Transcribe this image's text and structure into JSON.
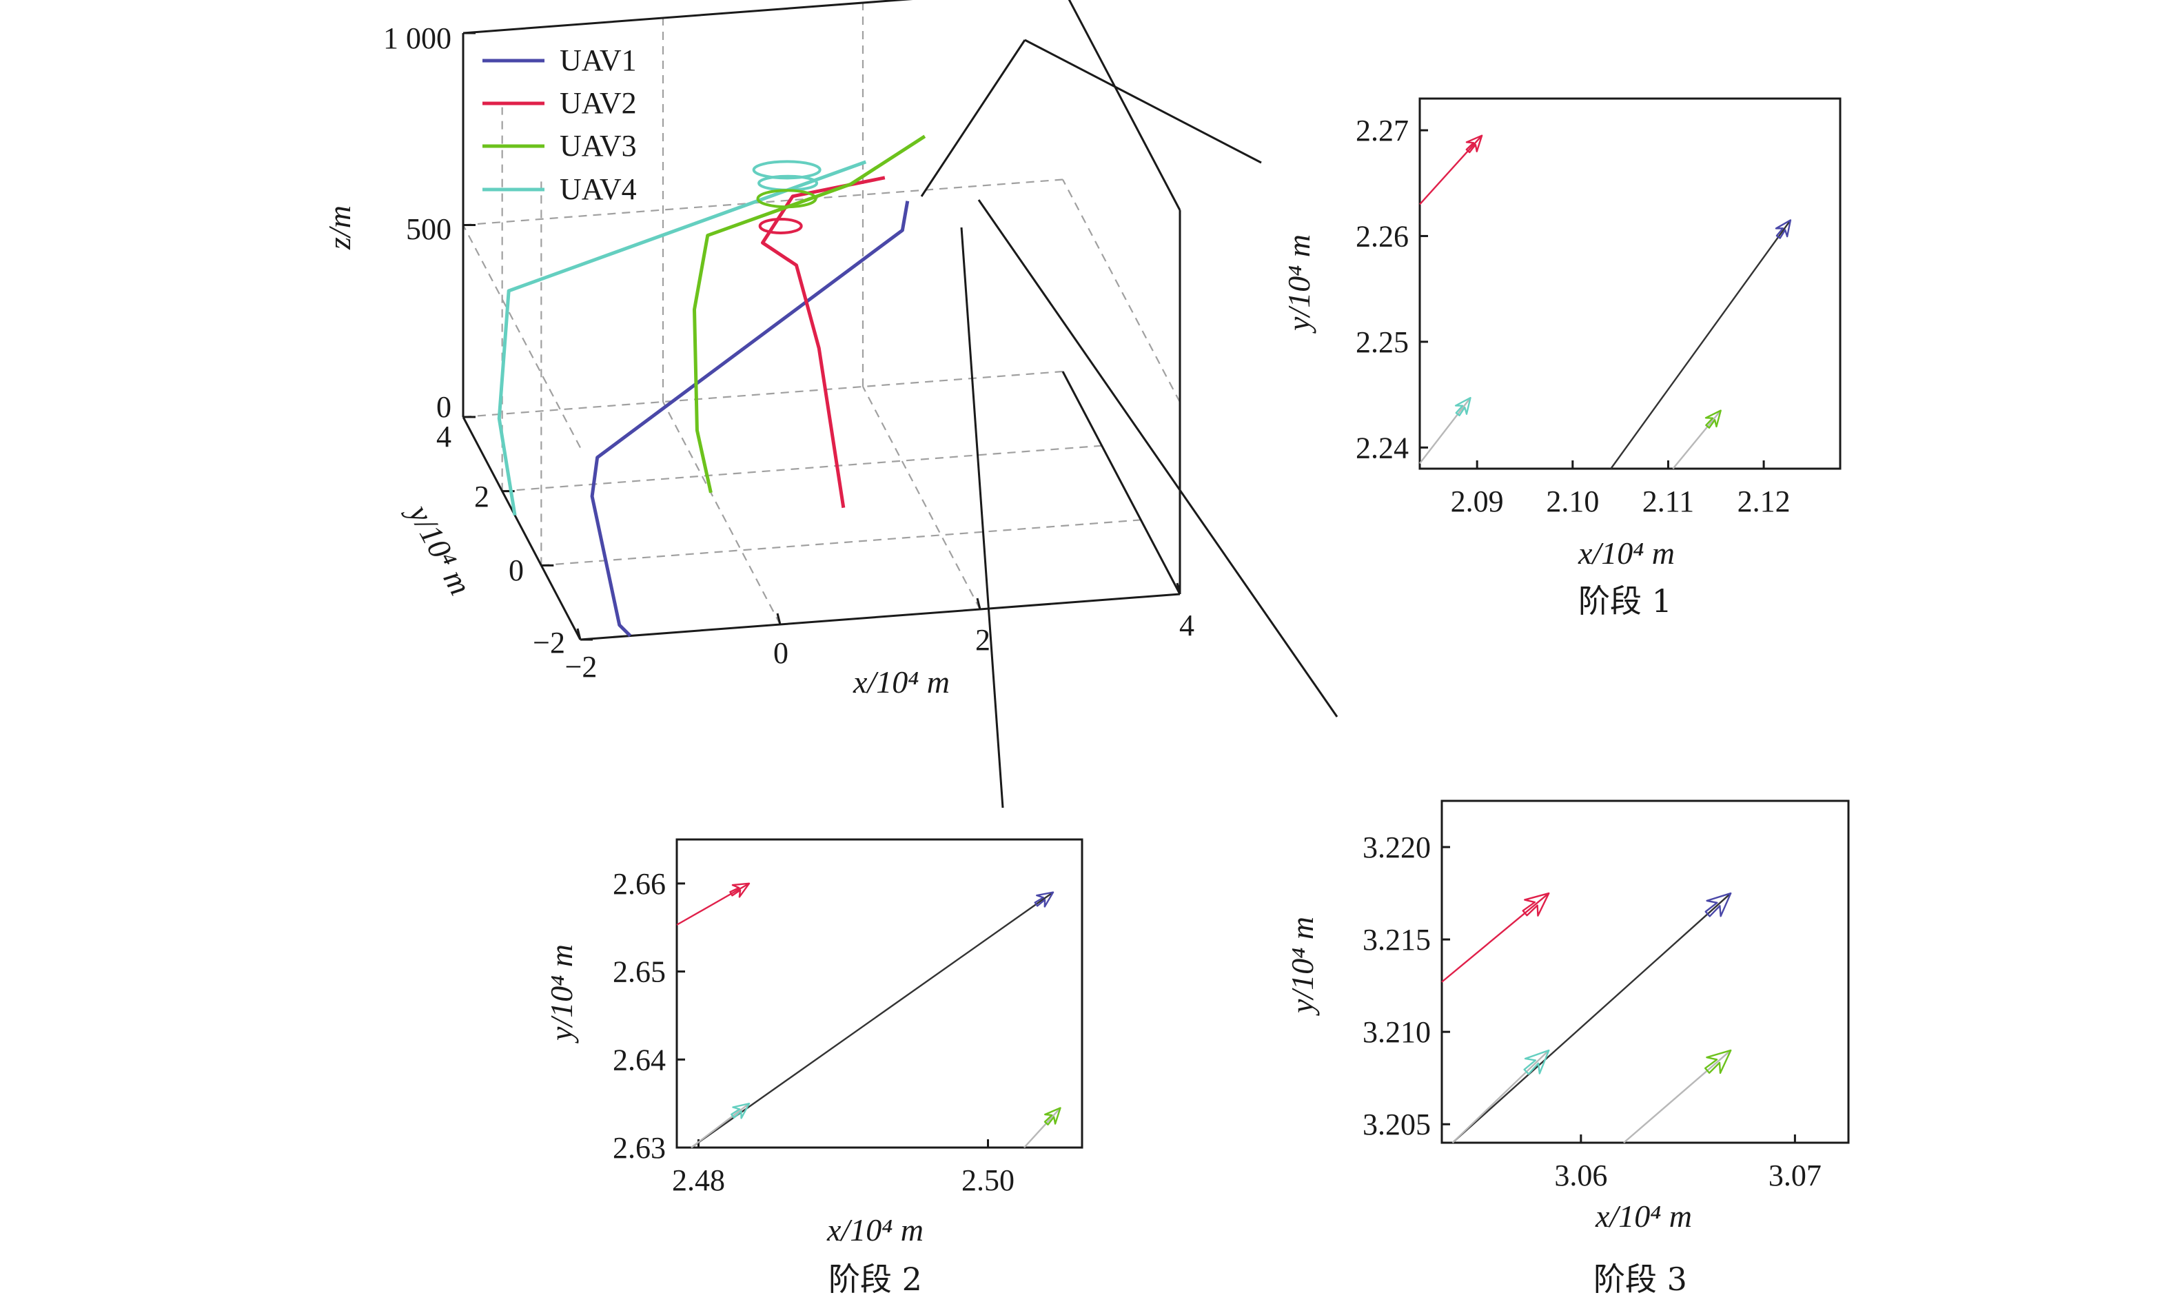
{
  "colors": {
    "UAV1": "#4a48a8",
    "UAV2": "#e0204a",
    "UAV3": "#6cc21c",
    "UAV4": "#64cfc0",
    "frame": "#1a1a1a",
    "grid": "#a0a0a0",
    "track": "#333333"
  },
  "chart_data": [
    {
      "id": "main3d",
      "type": "line",
      "projection": "3d",
      "xlabel": "x/10⁴ m",
      "ylabel": "y/10⁴ m",
      "zlabel": "z/m",
      "x_ticks": [
        "−2",
        "0",
        "2",
        "4"
      ],
      "y_ticks": [
        "−2",
        "0",
        "2",
        "4"
      ],
      "z_ticks": [
        "0",
        "500",
        "1 000"
      ],
      "xlim": [
        -2,
        4
      ],
      "ylim": [
        -2,
        4
      ],
      "zlim": [
        0,
        1000
      ],
      "legend": [
        "UAV1",
        "UAV2",
        "UAV3",
        "UAV4"
      ],
      "legend_position": "top-left",
      "grid": true,
      "series": [
        {
          "name": "UAV1",
          "points": [
            [
              -1.5,
              -2,
              0
            ],
            [
              -1.55,
              -1.7,
              0
            ],
            [
              -1.55,
              -0.3,
              200
            ],
            [
              -1.4,
              0.2,
              250
            ],
            [
              2.2,
              3.0,
              500
            ],
            [
              2.3,
              3.25,
              550
            ]
          ]
        },
        {
          "name": "UAV2",
          "points": [
            [
              1.2,
              0.9,
              0
            ],
            [
              1.15,
              1.9,
              320
            ],
            [
              1.1,
              2.8,
              450
            ],
            [
              0.85,
              3.25,
              470
            ],
            [
              1.2,
              3.5,
              560
            ],
            [
              2.2,
              3.9,
              550
            ]
          ]
        },
        {
          "name": "UAV3",
          "points": [
            [
              0,
              1.55,
              0
            ],
            [
              -0.05,
              2.0,
              120
            ],
            [
              0.05,
              2.65,
              370
            ],
            [
              0.3,
              3.25,
              500
            ],
            [
              1.8,
              3.6,
              570
            ],
            [
              2.6,
              3.9,
              650
            ]
          ]
        },
        {
          "name": "UAV4",
          "points": [
            [
              -2,
              1.35,
              0
            ],
            [
              -2.05,
              1.9,
              200
            ],
            [
              -1.7,
              3.2,
              400
            ],
            [
              0.9,
              3.75,
              530
            ],
            [
              2.0,
              3.85,
              600
            ]
          ]
        }
      ]
    },
    {
      "id": "stage1",
      "type": "line",
      "caption": "阶段 1",
      "xlabel": "x/10⁴ m",
      "ylabel": "y/10⁴ m",
      "xlim": [
        2.084,
        2.128
      ],
      "ylim": [
        2.238,
        2.273
      ],
      "x_ticks": [
        2.09,
        2.1,
        2.11,
        2.12
      ],
      "x_tick_labels": [
        "2.09",
        "2.10",
        "2.11",
        "2.12"
      ],
      "y_ticks": [
        2.24,
        2.25,
        2.26,
        2.27
      ],
      "y_tick_labels": [
        "2.24",
        "2.25",
        "2.26",
        "2.27"
      ],
      "series": [
        {
          "name": "UAV1",
          "x": [
            2.104,
            2.1228
          ],
          "y": [
            2.238,
            2.2615
          ]
        },
        {
          "name": "UAV2",
          "x": [
            2.084,
            2.0905
          ],
          "y": [
            2.263,
            2.2695
          ]
        },
        {
          "name": "UAV3",
          "x": [
            2.1105,
            2.1155
          ],
          "y": [
            2.238,
            2.2435
          ]
        },
        {
          "name": "UAV4",
          "x": [
            2.084,
            2.0893
          ],
          "y": [
            2.2385,
            2.2447
          ]
        }
      ]
    },
    {
      "id": "stage2",
      "type": "line",
      "caption": "阶段 2",
      "xlabel": "x/10⁴ m",
      "ylabel": "y/10⁴ m",
      "xlim": [
        2.4785,
        2.5065
      ],
      "ylim": [
        2.63,
        2.665
      ],
      "x_ticks": [
        2.48,
        2.5
      ],
      "x_tick_labels": [
        "2.48",
        "2.50"
      ],
      "y_ticks": [
        2.63,
        2.64,
        2.65,
        2.66
      ],
      "y_tick_labels": [
        "2.63",
        "2.64",
        "2.65",
        "2.66"
      ],
      "series": [
        {
          "name": "UAV1",
          "x": [
            2.4795,
            2.5045
          ],
          "y": [
            2.63,
            2.659
          ]
        },
        {
          "name": "UAV2",
          "x": [
            2.4785,
            2.4835
          ],
          "y": [
            2.6553,
            2.66
          ]
        },
        {
          "name": "UAV3",
          "x": [
            2.5025,
            2.505
          ],
          "y": [
            2.63,
            2.6345
          ]
        },
        {
          "name": "UAV4",
          "x": [
            2.4795,
            2.4835
          ],
          "y": [
            2.63,
            2.635
          ]
        }
      ]
    },
    {
      "id": "stage3",
      "type": "line",
      "caption": "阶段 3",
      "xlabel": "x/10⁴ m",
      "ylabel": "y/10⁴ m",
      "xlim": [
        3.0535,
        3.0725
      ],
      "ylim": [
        3.204,
        3.2225
      ],
      "x_ticks": [
        3.06,
        3.07
      ],
      "x_tick_labels": [
        "3.06",
        "3.07"
      ],
      "y_ticks": [
        3.205,
        3.21,
        3.215,
        3.22
      ],
      "y_tick_labels": [
        "3.205",
        "3.210",
        "3.215",
        "3.220"
      ],
      "series": [
        {
          "name": "UAV1",
          "x": [
            3.054,
            3.067
          ],
          "y": [
            3.204,
            3.2175
          ]
        },
        {
          "name": "UAV2",
          "x": [
            3.0535,
            3.0585
          ],
          "y": [
            3.2127,
            3.2175
          ]
        },
        {
          "name": "UAV3",
          "x": [
            3.062,
            3.067
          ],
          "y": [
            3.204,
            3.209
          ]
        },
        {
          "name": "UAV4",
          "x": [
            3.054,
            3.0585
          ],
          "y": [
            3.204,
            3.209
          ]
        }
      ]
    }
  ]
}
